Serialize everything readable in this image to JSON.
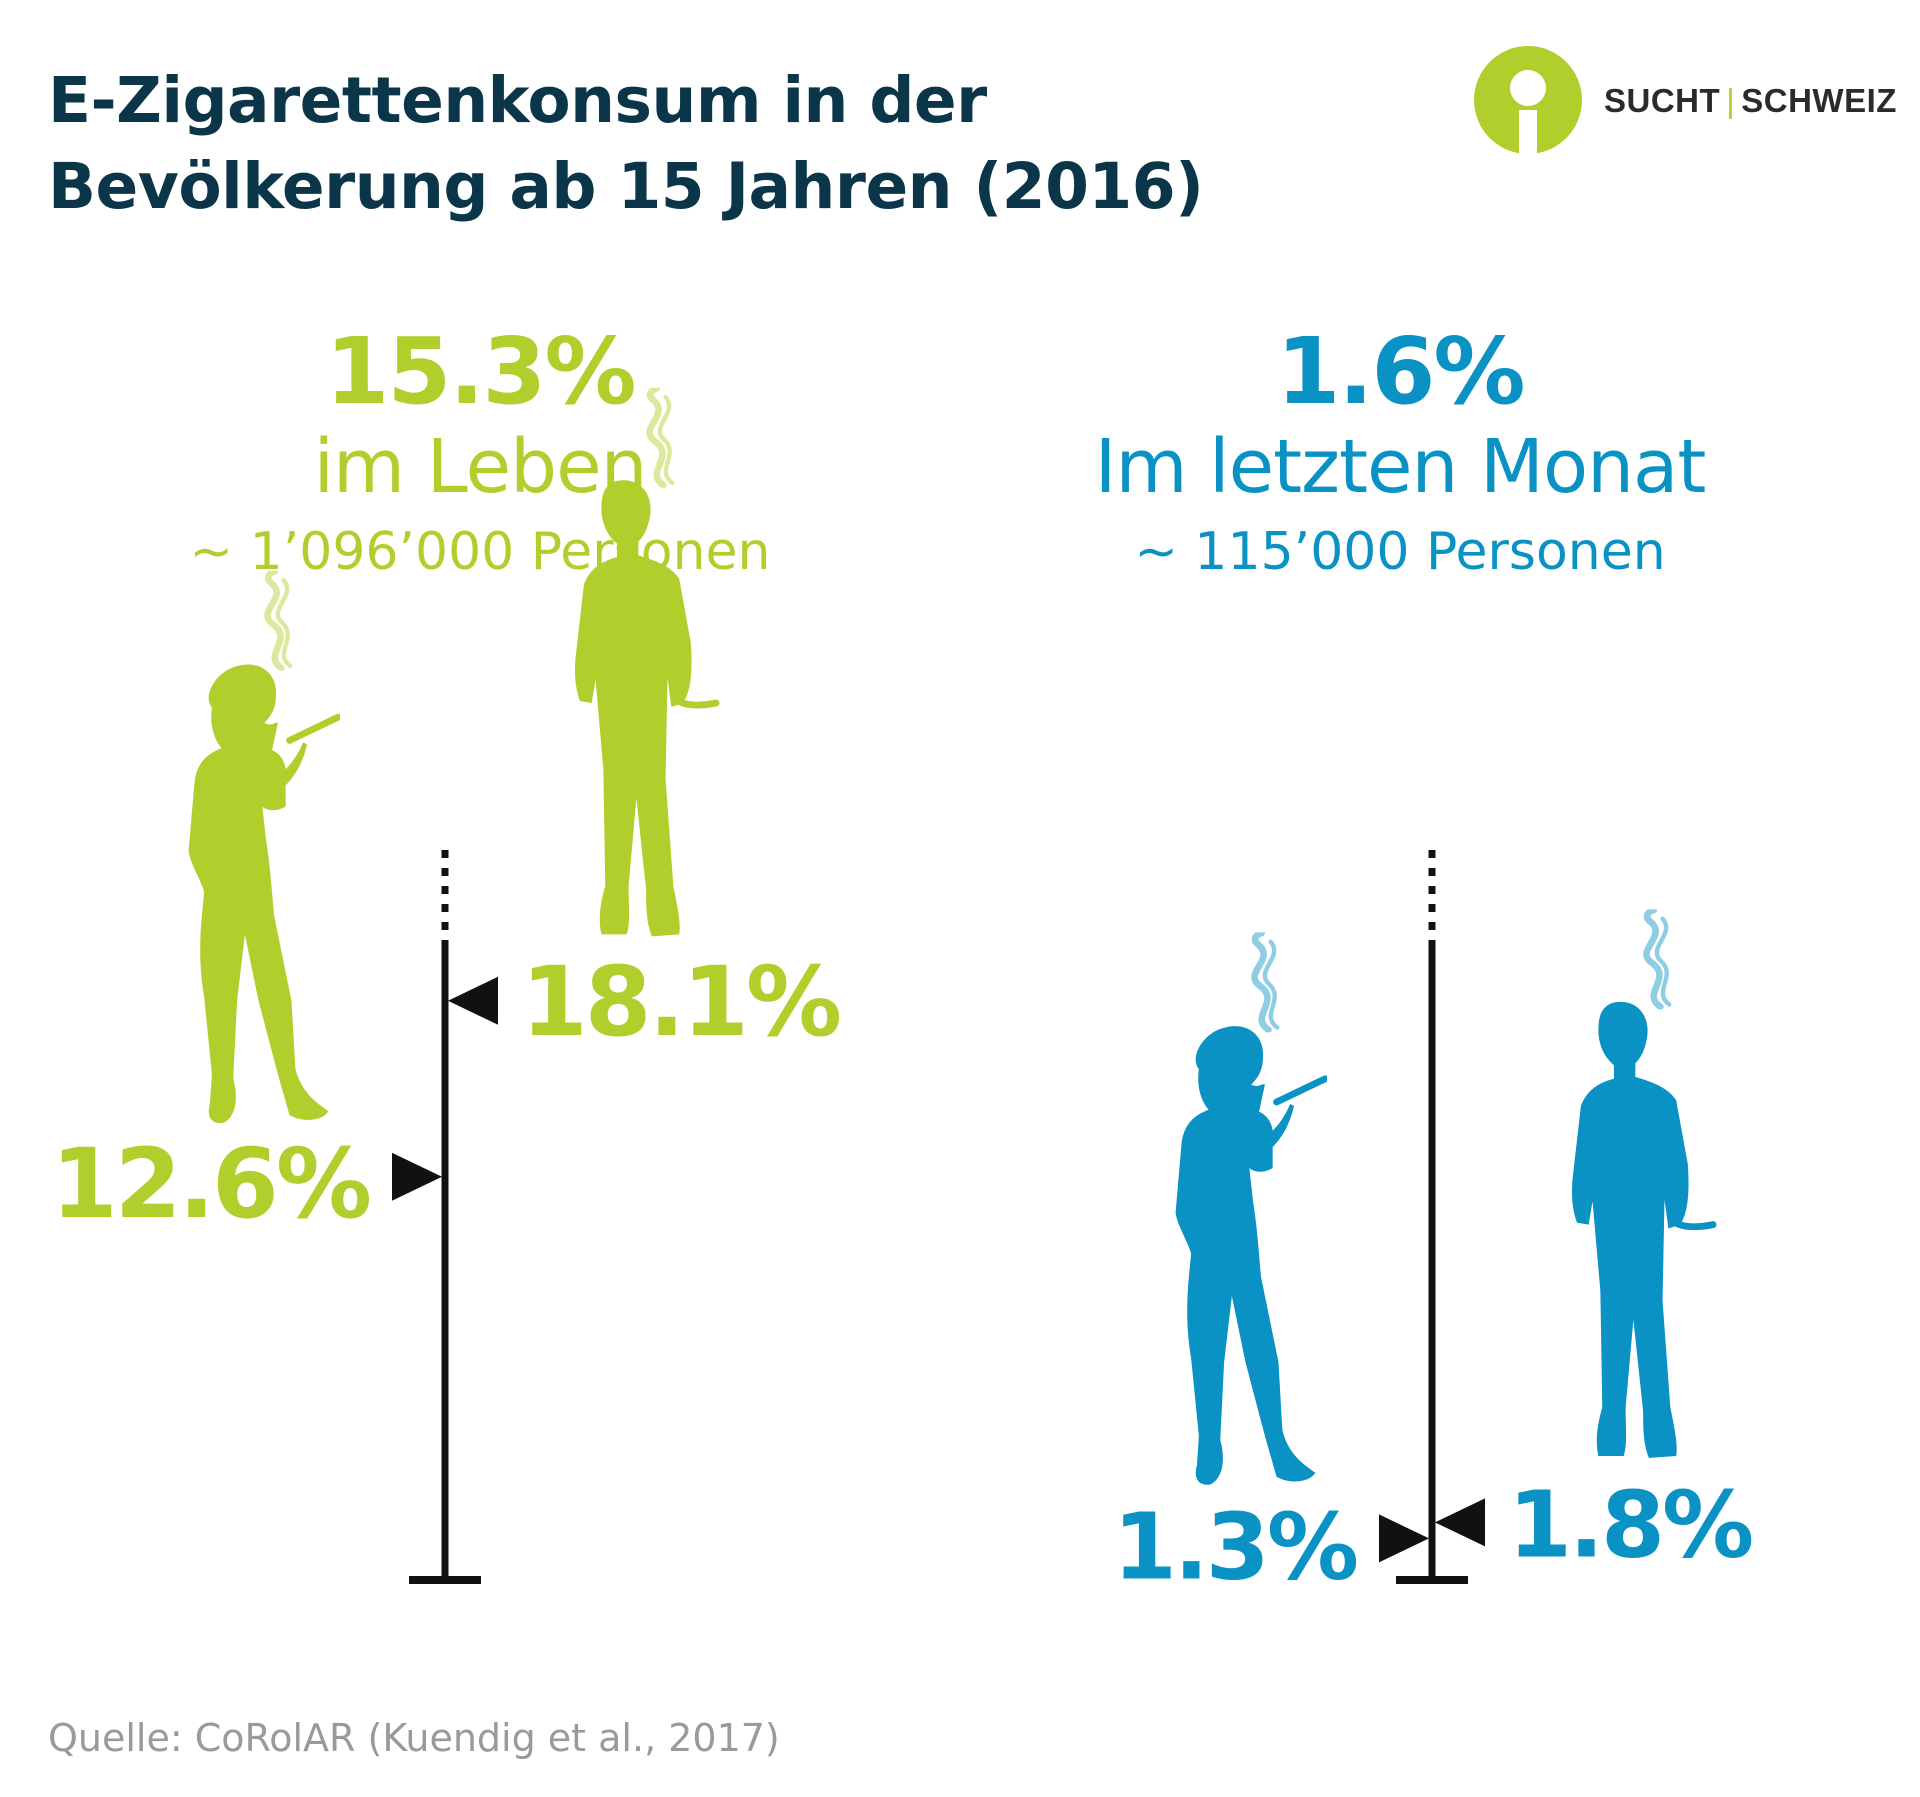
{
  "title": {
    "line1": "E-Zigarettenkonsum in der",
    "line2": "Bevölkerung ab 15 Jahren (2016)"
  },
  "logo": {
    "left": "SUCHT",
    "separator": "|",
    "right": "SCHWEIZ"
  },
  "colors": {
    "green": "#b1cf2c",
    "blue": "#0a92c4",
    "navy": "#0b3649",
    "axis": "#111111"
  },
  "source": "Quelle: CoRolAR (Kuendig et al., 2017)",
  "chart_data": [
    {
      "type": "bar",
      "headline_value": "15.3%",
      "headline_label": "im Leben",
      "persons": "~ 1’096’000 Personen",
      "categories": [
        "Frauen",
        "Männer"
      ],
      "values": [
        12.6,
        18.1
      ],
      "value_labels": [
        "12.6%",
        "18.1%"
      ],
      "color": "#b1cf2c",
      "ylim": [
        0,
        20
      ]
    },
    {
      "type": "bar",
      "headline_value": "1.6%",
      "headline_label": "Im letzten Monat",
      "persons": "~ 115’000 Personen",
      "categories": [
        "Frauen",
        "Männer"
      ],
      "values": [
        1.3,
        1.8
      ],
      "value_labels": [
        "1.3%",
        "1.8%"
      ],
      "color": "#0a92c4",
      "ylim": [
        0,
        20
      ]
    }
  ]
}
